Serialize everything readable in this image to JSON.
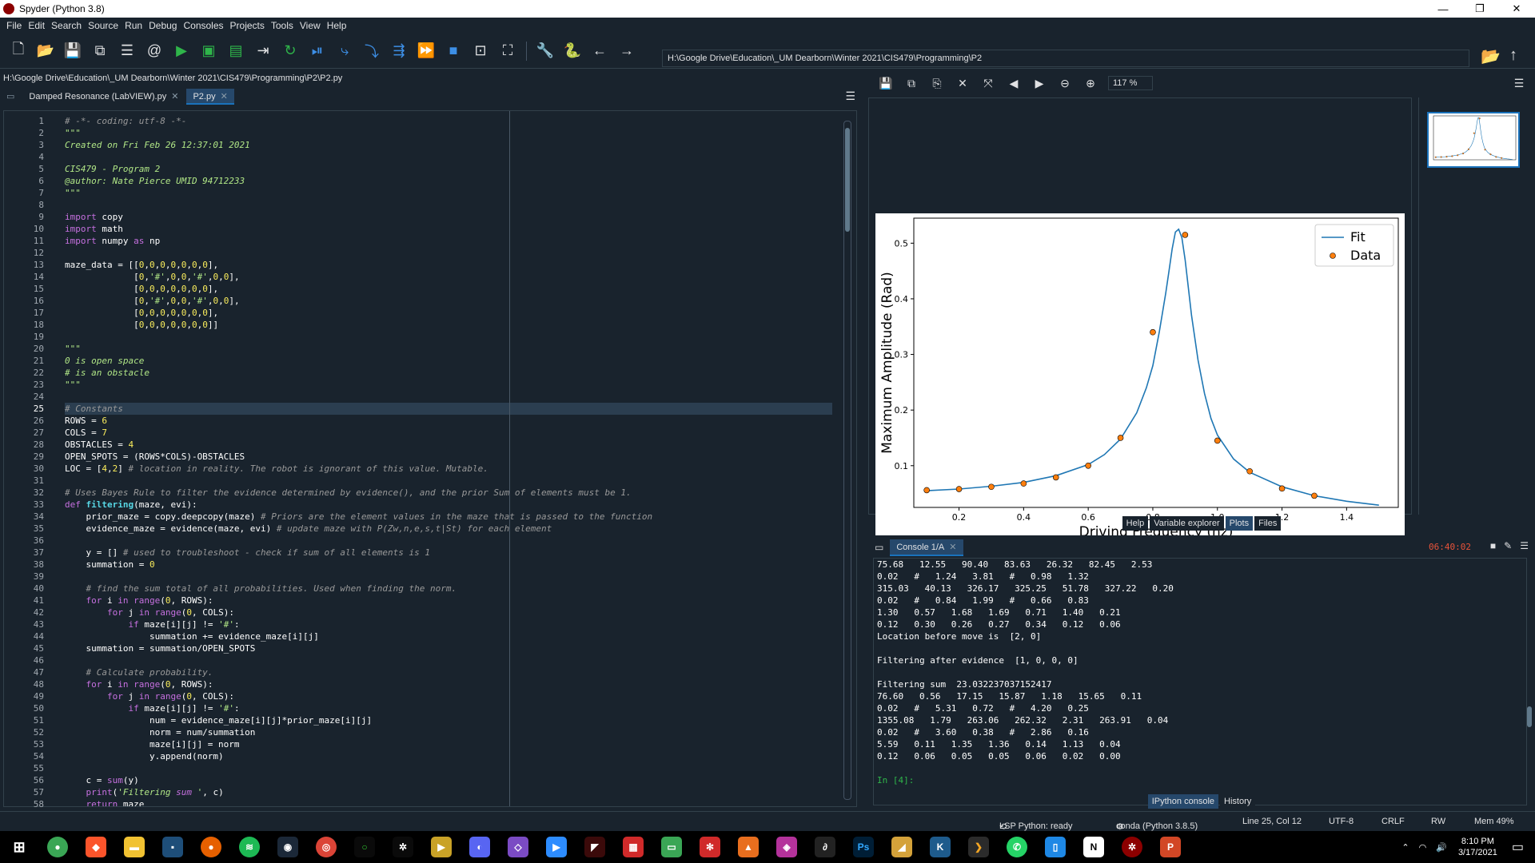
{
  "window": {
    "title": "Spyder (Python 3.8)",
    "controls": [
      "—",
      "❐",
      "✕"
    ]
  },
  "menu": [
    "File",
    "Edit",
    "Search",
    "Source",
    "Run",
    "Debug",
    "Consoles",
    "Projects",
    "Tools",
    "View",
    "Help"
  ],
  "toolbar": {
    "path": "H:\\Google Drive\\Education\\_UM Dearborn\\Winter 2021\\CIS479\\Programming\\P2"
  },
  "editor": {
    "file_path": "H:\\Google Drive\\Education\\_UM Dearborn\\Winter 2021\\CIS479\\Programming\\P2\\P2.py",
    "tabs": [
      {
        "label": "Damped Resonance (LabVIEW).py",
        "active": false
      },
      {
        "label": "P2.py",
        "active": true
      }
    ],
    "current_line": 25,
    "lines": [
      "# -*- coding: utf-8 -*-",
      "\"\"\"",
      "Created on Fri Feb 26 12:37:01 2021",
      "",
      "CIS479 - Program 2",
      "@author: Nate Pierce UMID 94712233",
      "\"\"\"",
      "",
      "import copy",
      "import math",
      "import numpy as np",
      "",
      "maze_data = [[0,0,0,0,0,0,0],",
      "             [0,'#',0,0,'#',0,0],",
      "             [0,0,0,0,0,0,0],",
      "             [0,'#',0,0,'#',0,0],",
      "             [0,0,0,0,0,0,0],",
      "             [0,0,0,0,0,0,0]]",
      "",
      "\"\"\"",
      "0 is open space",
      "# is an obstacle",
      "\"\"\"",
      "",
      "# Constants",
      "ROWS = 6",
      "COLS = 7",
      "OBSTACLES = 4",
      "OPEN_SPOTS = (ROWS*COLS)-OBSTACLES",
      "LOC = [4,2] # location in reality. The robot is ignorant of this value. Mutable.",
      "",
      "# Uses Bayes Rule to filter the evidence determined by evidence(), and the prior Sum of elements must be 1.",
      "def filtering(maze, evi):",
      "    prior_maze = copy.deepcopy(maze) # Priors are the element values in the maze that is passed to the function",
      "    evidence_maze = evidence(maze, evi) # update maze with P(Zw,n,e,s,t|St) for each element",
      "",
      "    y = [] # used to troubleshoot - check if sum of all elements is 1",
      "    summation = 0",
      "",
      "    # find the sum total of all probabilities. Used when finding the norm.",
      "    for i in range(0, ROWS):",
      "        for j in range(0, COLS):",
      "            if maze[i][j] != '#':",
      "                summation += evidence_maze[i][j]",
      "    summation = summation/OPEN_SPOTS",
      "",
      "    # Calculate probability.",
      "    for i in range(0, ROWS):",
      "        for j in range(0, COLS):",
      "            if maze[i][j] != '#':",
      "                num = evidence_maze[i][j]*prior_maze[i][j]",
      "                norm = num/summation",
      "                maze[i][j] = norm",
      "                y.append(norm)",
      "",
      "    c = sum(y)",
      "    print('Filtering sum ', c)",
      "    return maze"
    ]
  },
  "plots": {
    "zoom": "117 %",
    "pane_tabs": [
      {
        "label": "Help",
        "active": false
      },
      {
        "label": "Variable explorer",
        "active": false
      },
      {
        "label": "Plots",
        "active": true
      },
      {
        "label": "Files",
        "active": false
      }
    ]
  },
  "chart_data": {
    "type": "line",
    "title": "",
    "xlabel": "Driving Frequency (hz)",
    "ylabel": "Maximum Amplitude (Rad)",
    "xlim": [
      0.06,
      1.56
    ],
    "ylim": [
      0.025,
      0.545
    ],
    "xticks": [
      "0.2",
      "0.4",
      "0.6",
      "0.8",
      "1.0",
      "1.2",
      "1.4"
    ],
    "yticks": [
      "0.1",
      "0.2",
      "0.3",
      "0.4",
      "0.5"
    ],
    "legend_position": "top-right",
    "series": [
      {
        "name": "Fit",
        "kind": "line",
        "color": "#1f77b4",
        "x": [
          0.1,
          0.2,
          0.3,
          0.4,
          0.5,
          0.6,
          0.65,
          0.7,
          0.75,
          0.78,
          0.8,
          0.82,
          0.84,
          0.85,
          0.86,
          0.87,
          0.88,
          0.89,
          0.9,
          0.91,
          0.92,
          0.94,
          0.96,
          0.98,
          1.0,
          1.05,
          1.1,
          1.2,
          1.3,
          1.4,
          1.5
        ],
        "y": [
          0.055,
          0.058,
          0.063,
          0.07,
          0.082,
          0.102,
          0.12,
          0.148,
          0.195,
          0.24,
          0.28,
          0.34,
          0.41,
          0.45,
          0.49,
          0.52,
          0.525,
          0.51,
          0.47,
          0.42,
          0.37,
          0.29,
          0.23,
          0.185,
          0.155,
          0.112,
          0.088,
          0.062,
          0.046,
          0.036,
          0.029
        ]
      },
      {
        "name": "Data",
        "kind": "scatter",
        "color": "#ff7f0e",
        "x": [
          0.1,
          0.2,
          0.3,
          0.4,
          0.5,
          0.6,
          0.7,
          0.8,
          0.9,
          1.0,
          1.1,
          1.2,
          1.3
        ],
        "y": [
          0.056,
          0.058,
          0.062,
          0.068,
          0.079,
          0.1,
          0.15,
          0.34,
          0.515,
          0.145,
          0.09,
          0.059,
          0.046
        ]
      }
    ]
  },
  "console": {
    "tab_label": "Console 1/A",
    "time": "06:40:02",
    "lines": [
      "75.68   12.55   90.40   83.63   26.32   82.45   2.53",
      "0.02   #   1.24   3.81   #   0.98   1.32",
      "315.03   40.13   326.17   325.25   51.78   327.22   0.20",
      "0.02   #   0.84   1.99   #   0.66   0.83",
      "1.30   0.57   1.68   1.69   0.71   1.40   0.21",
      "0.12   0.30   0.26   0.27   0.34   0.12   0.06",
      "Location before move is  [2, 0]",
      "",
      "Filtering after evidence  [1, 0, 0, 0]",
      "",
      "Filtering sum  23.032237037152417",
      "76.60   0.56   17.15   15.87   1.18   15.65   0.11",
      "0.02   #   5.31   0.72   #   4.20   0.25",
      "1355.08   1.79   263.06   262.32   2.31   263.91   0.04",
      "0.02   #   3.60   0.38   #   2.86   0.16",
      "5.59   0.11   1.35   1.36   0.14   1.13   0.04",
      "0.12   0.06   0.05   0.05   0.06   0.02   0.00",
      "",
      "In [4]:"
    ],
    "bottom_tabs": [
      {
        "label": "IPython console",
        "active": true
      },
      {
        "label": "History",
        "active": false
      }
    ]
  },
  "status": {
    "lsp": "LSP Python: ready",
    "conda": "conda (Python 3.8.5)",
    "position": "Line 25, Col 12",
    "encoding": "UTF-8",
    "eol": "CRLF",
    "rw": "RW",
    "mem": "Mem 49%"
  },
  "taskbar": {
    "time": "8:10 PM",
    "date": "3/17/2021"
  }
}
